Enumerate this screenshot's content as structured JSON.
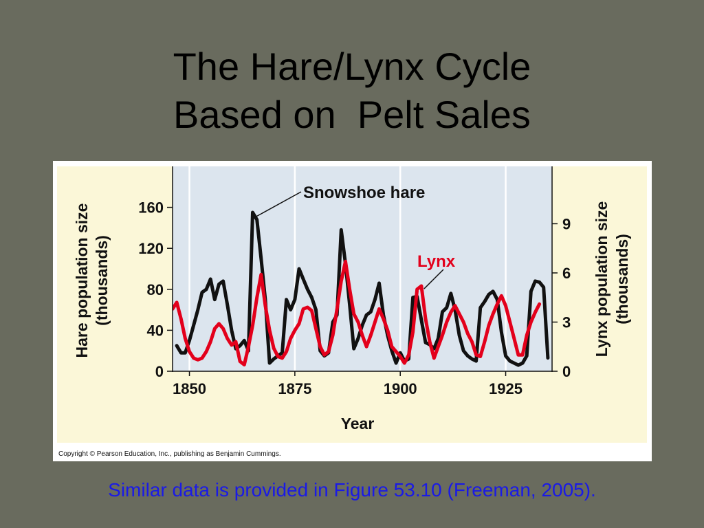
{
  "slide": {
    "title_line1": "The Hare/Lynx Cycle",
    "title_line2": "Based on  Pelt Sales",
    "footer": "Similar data is provided in Figure 53.10 (Freeman, 2005)."
  },
  "figure": {
    "copyright": "Copyright © Pearson Education, Inc., publishing as Benjamin Cummings."
  },
  "colors": {
    "slide_background": "#696b5e",
    "figure_background": "#fbf7d8",
    "plot_background": "#dce5ee",
    "hare": "#111111",
    "lynx": "#e3001b",
    "footer_text": "#1a1ae6"
  },
  "chart_data": {
    "type": "line",
    "xlabel": "Year",
    "xlim": [
      1846,
      1936
    ],
    "x_ticks": [
      1850,
      1875,
      1900,
      1925
    ],
    "y_left": {
      "label_line1": "Hare population size",
      "label_line2": "(thousands)",
      "ylim": [
        0,
        200
      ],
      "ticks": [
        0,
        40,
        80,
        120,
        160
      ]
    },
    "y_right": {
      "label_line1": "Lynx population size",
      "label_line2": "(thousands)",
      "ylim": [
        0,
        12.5
      ],
      "ticks": [
        0,
        3,
        6,
        9
      ]
    },
    "grid": "vertical",
    "annotations": [
      {
        "text": "Snowshoe hare",
        "series": "hare"
      },
      {
        "text": "Lynx",
        "series": "lynx"
      }
    ],
    "series": [
      {
        "key": "hare",
        "axis": "left",
        "points": [
          [
            1847,
            25
          ],
          [
            1848,
            18
          ],
          [
            1849,
            18
          ],
          [
            1850,
            30
          ],
          [
            1851,
            45
          ],
          [
            1852,
            60
          ],
          [
            1853,
            77
          ],
          [
            1854,
            80
          ],
          [
            1855,
            90
          ],
          [
            1856,
            70
          ],
          [
            1857,
            85
          ],
          [
            1858,
            88
          ],
          [
            1859,
            65
          ],
          [
            1860,
            40
          ],
          [
            1861,
            22
          ],
          [
            1862,
            25
          ],
          [
            1863,
            30
          ],
          [
            1864,
            20
          ],
          [
            1865,
            155
          ],
          [
            1866,
            148
          ],
          [
            1867,
            110
          ],
          [
            1868,
            70
          ],
          [
            1869,
            8
          ],
          [
            1870,
            12
          ],
          [
            1871,
            15
          ],
          [
            1872,
            18
          ],
          [
            1873,
            70
          ],
          [
            1874,
            60
          ],
          [
            1875,
            70
          ],
          [
            1876,
            100
          ],
          [
            1877,
            90
          ],
          [
            1878,
            80
          ],
          [
            1879,
            72
          ],
          [
            1880,
            60
          ],
          [
            1881,
            20
          ],
          [
            1882,
            15
          ],
          [
            1883,
            18
          ],
          [
            1884,
            48
          ],
          [
            1885,
            55
          ],
          [
            1886,
            138
          ],
          [
            1887,
            105
          ],
          [
            1888,
            65
          ],
          [
            1889,
            22
          ],
          [
            1890,
            32
          ],
          [
            1891,
            45
          ],
          [
            1892,
            55
          ],
          [
            1893,
            58
          ],
          [
            1894,
            70
          ],
          [
            1895,
            86
          ],
          [
            1896,
            55
          ],
          [
            1897,
            35
          ],
          [
            1898,
            20
          ],
          [
            1899,
            8
          ],
          [
            1900,
            18
          ],
          [
            1901,
            10
          ],
          [
            1902,
            12
          ],
          [
            1903,
            72
          ],
          [
            1904,
            73
          ],
          [
            1905,
            50
          ],
          [
            1906,
            28
          ],
          [
            1907,
            26
          ],
          [
            1908,
            22
          ],
          [
            1909,
            32
          ],
          [
            1910,
            58
          ],
          [
            1911,
            62
          ],
          [
            1912,
            76
          ],
          [
            1913,
            60
          ],
          [
            1914,
            35
          ],
          [
            1915,
            20
          ],
          [
            1916,
            15
          ],
          [
            1917,
            12
          ],
          [
            1918,
            10
          ],
          [
            1919,
            62
          ],
          [
            1920,
            68
          ],
          [
            1921,
            75
          ],
          [
            1922,
            78
          ],
          [
            1923,
            70
          ],
          [
            1924,
            38
          ],
          [
            1925,
            15
          ],
          [
            1926,
            10
          ],
          [
            1927,
            8
          ],
          [
            1928,
            6
          ],
          [
            1929,
            8
          ],
          [
            1930,
            15
          ],
          [
            1931,
            78
          ],
          [
            1932,
            88
          ],
          [
            1933,
            87
          ],
          [
            1934,
            82
          ],
          [
            1935,
            13
          ]
        ]
      },
      {
        "key": "lynx",
        "axis": "left_scaled",
        "points": [
          [
            1846,
            3.8
          ],
          [
            1847,
            4.2
          ],
          [
            1848,
            3.2
          ],
          [
            1849,
            2.0
          ],
          [
            1850,
            1.2
          ],
          [
            1851,
            0.8
          ],
          [
            1852,
            0.7
          ],
          [
            1853,
            0.8
          ],
          [
            1854,
            1.2
          ],
          [
            1855,
            1.8
          ],
          [
            1856,
            2.6
          ],
          [
            1857,
            2.9
          ],
          [
            1858,
            2.6
          ],
          [
            1859,
            2.0
          ],
          [
            1860,
            1.6
          ],
          [
            1861,
            1.8
          ],
          [
            1862,
            0.6
          ],
          [
            1863,
            0.4
          ],
          [
            1864,
            1.5
          ],
          [
            1865,
            2.8
          ],
          [
            1866,
            4.5
          ],
          [
            1867,
            5.9
          ],
          [
            1868,
            4.0
          ],
          [
            1869,
            2.5
          ],
          [
            1870,
            1.4
          ],
          [
            1871,
            0.9
          ],
          [
            1872,
            0.8
          ],
          [
            1873,
            1.2
          ],
          [
            1874,
            2.0
          ],
          [
            1875,
            2.5
          ],
          [
            1876,
            2.9
          ],
          [
            1877,
            3.8
          ],
          [
            1878,
            3.9
          ],
          [
            1879,
            3.7
          ],
          [
            1880,
            2.6
          ],
          [
            1881,
            1.5
          ],
          [
            1882,
            1.0
          ],
          [
            1883,
            1.2
          ],
          [
            1884,
            2.2
          ],
          [
            1885,
            3.8
          ],
          [
            1886,
            5.5
          ],
          [
            1887,
            6.7
          ],
          [
            1888,
            5.0
          ],
          [
            1889,
            3.5
          ],
          [
            1890,
            3.0
          ],
          [
            1891,
            2.2
          ],
          [
            1892,
            1.5
          ],
          [
            1893,
            2.2
          ],
          [
            1894,
            3.0
          ],
          [
            1895,
            3.8
          ],
          [
            1896,
            3.2
          ],
          [
            1897,
            2.5
          ],
          [
            1898,
            1.5
          ],
          [
            1899,
            1.2
          ],
          [
            1900,
            0.9
          ],
          [
            1901,
            0.5
          ],
          [
            1902,
            1.0
          ],
          [
            1903,
            2.4
          ],
          [
            1904,
            5.0
          ],
          [
            1905,
            5.2
          ],
          [
            1906,
            3.2
          ],
          [
            1907,
            1.8
          ],
          [
            1908,
            0.8
          ],
          [
            1909,
            1.5
          ],
          [
            1910,
            2.2
          ],
          [
            1911,
            3.0
          ],
          [
            1912,
            3.6
          ],
          [
            1913,
            4.0
          ],
          [
            1914,
            3.5
          ],
          [
            1915,
            3.0
          ],
          [
            1916,
            2.3
          ],
          [
            1917,
            1.8
          ],
          [
            1918,
            1.0
          ],
          [
            1919,
            0.9
          ],
          [
            1920,
            1.8
          ],
          [
            1921,
            2.8
          ],
          [
            1922,
            3.5
          ],
          [
            1923,
            4.1
          ],
          [
            1924,
            4.6
          ],
          [
            1925,
            4.0
          ],
          [
            1926,
            3.0
          ],
          [
            1927,
            2.0
          ],
          [
            1928,
            1.0
          ],
          [
            1929,
            1.0
          ],
          [
            1930,
            2.2
          ],
          [
            1931,
            3.0
          ],
          [
            1932,
            3.6
          ],
          [
            1933,
            4.1
          ]
        ]
      }
    ]
  }
}
